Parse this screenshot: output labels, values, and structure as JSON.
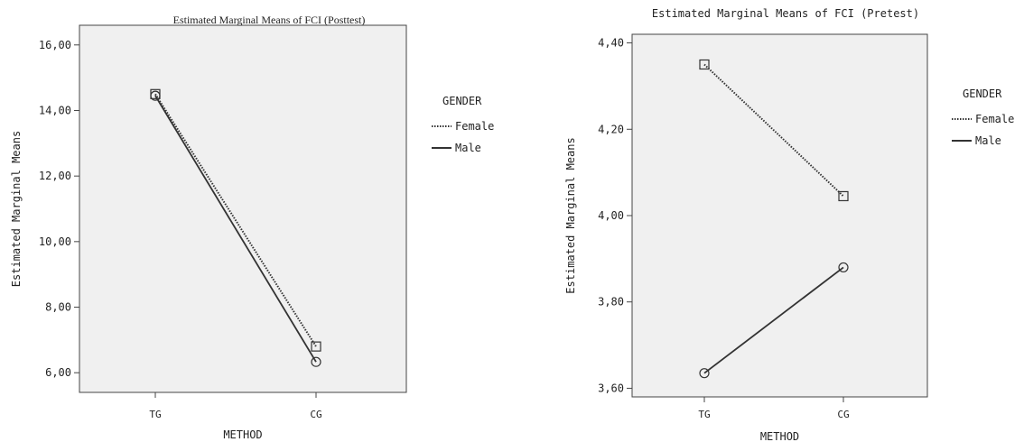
{
  "chart_data": [
    {
      "type": "line",
      "title": "Estimated Marginal Means of FCI (Posttest)",
      "xlabel": "METHOD",
      "ylabel": "Estimated Marginal Means",
      "categories": [
        "TG",
        "CG"
      ],
      "ylim": [
        5.4,
        16.6
      ],
      "yticks": [
        6,
        8,
        10,
        12,
        14,
        16
      ],
      "ytick_labels": [
        "6,00",
        "8,00",
        "10,00",
        "12,00",
        "14,00",
        "16,00"
      ],
      "legend_title": "GENDER",
      "legend_position": "right",
      "series": [
        {
          "name": "Female",
          "values": [
            14.5,
            6.8
          ],
          "style": "dotted",
          "marker": "square"
        },
        {
          "name": "Male",
          "values": [
            14.45,
            6.33
          ],
          "style": "solid",
          "marker": "circle"
        }
      ]
    },
    {
      "type": "line",
      "title": "Estimated Marginal Means of FCI (Pretest)",
      "xlabel": "METHOD",
      "ylabel": "Estimated Marginal Means",
      "categories": [
        "TG",
        "CG"
      ],
      "ylim": [
        3.58,
        4.42
      ],
      "yticks": [
        3.6,
        3.8,
        4.0,
        4.2,
        4.4
      ],
      "ytick_labels": [
        "3,60",
        "3,80",
        "4,00",
        "4,20",
        "4,40"
      ],
      "legend_title": "GENDER",
      "legend_position": "right",
      "series": [
        {
          "name": "Female",
          "values": [
            4.35,
            4.045
          ],
          "style": "dotted",
          "marker": "square"
        },
        {
          "name": "Male",
          "values": [
            3.635,
            3.88
          ],
          "style": "solid",
          "marker": "circle"
        }
      ]
    }
  ],
  "colors": {
    "plot_background": "#f0f0f0",
    "line": "#333333",
    "frame": "#444444"
  }
}
